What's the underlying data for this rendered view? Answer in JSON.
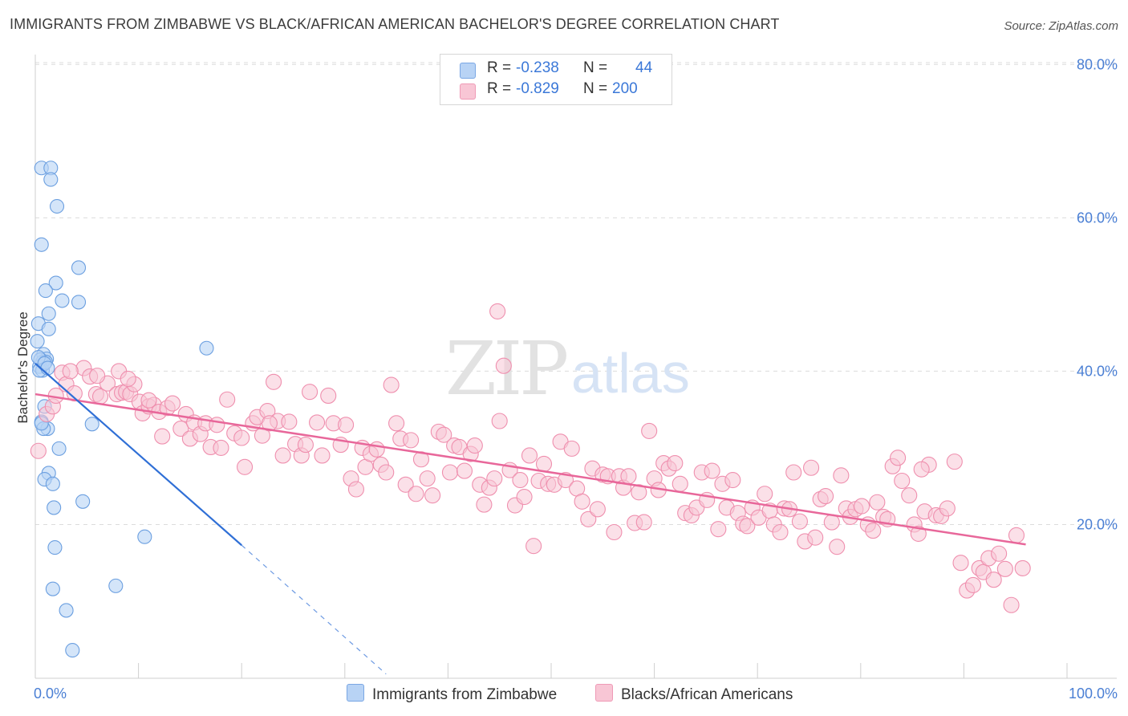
{
  "title": "IMMIGRANTS FROM ZIMBABWE VS BLACK/AFRICAN AMERICAN BACHELOR'S DEGREE CORRELATION CHART",
  "source": "Source: ZipAtlas.com",
  "legend": {
    "r_label": "R =",
    "n_label": "N =",
    "rows": [
      {
        "r": "-0.238",
        "n": "44",
        "color": "#a9c8f2"
      },
      {
        "r": "-0.829",
        "n": "200",
        "color": "#f5b8cb"
      }
    ]
  },
  "colors": {
    "blue_fill": "#b8d3f5",
    "blue_stroke": "#6b9fe0",
    "blue_line": "#2f6fd6",
    "pink_fill": "#f8c6d5",
    "pink_stroke": "#ef8fae",
    "pink_line": "#e8679a"
  },
  "chart_data": {
    "type": "scatter",
    "title": "IMMIGRANTS FROM ZIMBABWE VS BLACK/AFRICAN AMERICAN BACHELOR'S DEGREE CORRELATION CHART",
    "xlabel": "",
    "ylabel": "Bachelor's Degree",
    "xlim": [
      0,
      100
    ],
    "ylim": [
      0,
      80
    ],
    "x_tick_labels": [
      "0.0%",
      "100.0%"
    ],
    "y_tick_labels": [
      "20.0%",
      "40.0%",
      "60.0%",
      "80.0%"
    ],
    "y_ticks": [
      20,
      40,
      60,
      80
    ],
    "grid": true,
    "legend_position": "top-center",
    "series": [
      {
        "name": "Immigrants from Zimbabwe",
        "r": -0.238,
        "n": 44,
        "points": [
          [
            0.6,
            66.5
          ],
          [
            1.5,
            66.5
          ],
          [
            1.5,
            65.0
          ],
          [
            2.1,
            61.5
          ],
          [
            0.6,
            56.5
          ],
          [
            4.2,
            53.5
          ],
          [
            2.0,
            51.5
          ],
          [
            1.0,
            50.5
          ],
          [
            2.6,
            49.2
          ],
          [
            4.2,
            49.0
          ],
          [
            1.3,
            47.5
          ],
          [
            0.3,
            46.2
          ],
          [
            1.3,
            45.5
          ],
          [
            0.2,
            43.9
          ],
          [
            0.8,
            42.2
          ],
          [
            1.1,
            41.6
          ],
          [
            0.7,
            41.2
          ],
          [
            0.4,
            40.6
          ],
          [
            0.7,
            40.1
          ],
          [
            0.4,
            40.1
          ],
          [
            16.6,
            43.0
          ],
          [
            0.9,
            35.4
          ],
          [
            0.6,
            33.4
          ],
          [
            1.2,
            32.5
          ],
          [
            0.8,
            32.5
          ],
          [
            5.5,
            33.1
          ],
          [
            2.3,
            29.9
          ],
          [
            1.3,
            26.7
          ],
          [
            0.9,
            25.9
          ],
          [
            1.7,
            25.3
          ],
          [
            1.8,
            22.2
          ],
          [
            4.6,
            23.0
          ],
          [
            10.6,
            18.4
          ],
          [
            1.9,
            17.0
          ],
          [
            1.7,
            11.6
          ],
          [
            7.8,
            12.0
          ],
          [
            3.0,
            8.8
          ],
          [
            3.6,
            3.6
          ],
          [
            0.5,
            41.5
          ],
          [
            1.0,
            41.2
          ],
          [
            0.3,
            41.8
          ],
          [
            0.9,
            41.0
          ],
          [
            1.2,
            40.4
          ],
          [
            0.6,
            33.2
          ]
        ],
        "trend": {
          "x": [
            0,
            20
          ],
          "y": [
            41.0,
            17.3
          ]
        },
        "trend_extension": {
          "x": [
            20,
            34
          ],
          "y": [
            17.3,
            0.5
          ]
        }
      },
      {
        "name": "Blacks/African Americans",
        "r": -0.829,
        "n": 200,
        "points": [
          [
            0.3,
            29.6
          ],
          [
            1.1,
            34.4
          ],
          [
            1.7,
            35.4
          ],
          [
            2.6,
            39.8
          ],
          [
            3.0,
            38.3
          ],
          [
            3.8,
            37.1
          ],
          [
            4.7,
            40.4
          ],
          [
            5.3,
            39.3
          ],
          [
            5.9,
            37.0
          ],
          [
            6.3,
            36.7
          ],
          [
            7.0,
            38.4
          ],
          [
            7.9,
            37.0
          ],
          [
            8.1,
            40.0
          ],
          [
            8.4,
            37.2
          ],
          [
            8.8,
            37.3
          ],
          [
            9.2,
            37.0
          ],
          [
            9.6,
            38.3
          ],
          [
            10.1,
            36.0
          ],
          [
            10.4,
            34.5
          ],
          [
            11.0,
            35.4
          ],
          [
            11.5,
            35.6
          ],
          [
            12.0,
            34.7
          ],
          [
            12.3,
            31.5
          ],
          [
            12.8,
            35.2
          ],
          [
            13.3,
            35.8
          ],
          [
            14.1,
            32.5
          ],
          [
            14.6,
            34.4
          ],
          [
            15.0,
            31.2
          ],
          [
            15.4,
            33.3
          ],
          [
            16.0,
            31.8
          ],
          [
            16.5,
            33.2
          ],
          [
            17.0,
            30.1
          ],
          [
            17.6,
            33.0
          ],
          [
            18.0,
            30.0
          ],
          [
            18.6,
            36.3
          ],
          [
            19.3,
            31.9
          ],
          [
            20.0,
            31.3
          ],
          [
            20.3,
            27.5
          ],
          [
            21.1,
            33.2
          ],
          [
            21.5,
            34.0
          ],
          [
            22.0,
            31.6
          ],
          [
            22.5,
            34.8
          ],
          [
            23.1,
            38.6
          ],
          [
            23.5,
            33.5
          ],
          [
            24.0,
            29.0
          ],
          [
            24.6,
            33.4
          ],
          [
            25.2,
            30.5
          ],
          [
            25.8,
            29.0
          ],
          [
            26.2,
            30.4
          ],
          [
            26.6,
            37.3
          ],
          [
            27.3,
            33.3
          ],
          [
            27.8,
            29.0
          ],
          [
            28.4,
            36.8
          ],
          [
            28.9,
            33.2
          ],
          [
            29.6,
            30.4
          ],
          [
            30.1,
            33.0
          ],
          [
            30.6,
            26.0
          ],
          [
            31.1,
            24.6
          ],
          [
            31.7,
            30.0
          ],
          [
            32.0,
            27.5
          ],
          [
            32.5,
            29.2
          ],
          [
            33.1,
            29.8
          ],
          [
            33.5,
            27.8
          ],
          [
            34.0,
            26.8
          ],
          [
            34.5,
            38.2
          ],
          [
            35.0,
            33.2
          ],
          [
            35.4,
            31.2
          ],
          [
            35.9,
            25.2
          ],
          [
            36.4,
            31.0
          ],
          [
            36.9,
            24.0
          ],
          [
            37.4,
            28.5
          ],
          [
            38.0,
            26.0
          ],
          [
            38.5,
            23.8
          ],
          [
            39.1,
            32.1
          ],
          [
            39.6,
            31.7
          ],
          [
            40.2,
            26.8
          ],
          [
            40.6,
            30.3
          ],
          [
            41.1,
            30.1
          ],
          [
            41.6,
            27.0
          ],
          [
            42.2,
            29.2
          ],
          [
            42.6,
            30.3
          ],
          [
            43.1,
            25.2
          ],
          [
            43.5,
            22.6
          ],
          [
            44.0,
            24.8
          ],
          [
            44.5,
            26.0
          ],
          [
            45.0,
            33.5
          ],
          [
            45.4,
            40.7
          ],
          [
            46.0,
            27.1
          ],
          [
            46.5,
            22.5
          ],
          [
            47.0,
            25.8
          ],
          [
            47.4,
            23.6
          ],
          [
            47.9,
            29.0
          ],
          [
            48.3,
            17.2
          ],
          [
            48.8,
            25.7
          ],
          [
            49.3,
            27.9
          ],
          [
            49.7,
            25.3
          ],
          [
            50.3,
            25.2
          ],
          [
            50.9,
            30.8
          ],
          [
            51.4,
            25.8
          ],
          [
            52.0,
            29.9
          ],
          [
            52.5,
            24.7
          ],
          [
            53.0,
            23.0
          ],
          [
            53.6,
            20.7
          ],
          [
            54.0,
            27.3
          ],
          [
            54.5,
            22.0
          ],
          [
            55.0,
            26.5
          ],
          [
            55.5,
            26.3
          ],
          [
            56.1,
            19.0
          ],
          [
            56.6,
            26.3
          ],
          [
            57.0,
            24.8
          ],
          [
            57.5,
            26.3
          ],
          [
            58.1,
            20.2
          ],
          [
            58.5,
            24.2
          ],
          [
            59.0,
            20.3
          ],
          [
            59.5,
            32.2
          ],
          [
            60.0,
            26.0
          ],
          [
            60.4,
            24.5
          ],
          [
            60.9,
            28.0
          ],
          [
            61.4,
            27.3
          ],
          [
            62.0,
            28.0
          ],
          [
            62.5,
            25.3
          ],
          [
            63.0,
            21.5
          ],
          [
            63.6,
            21.2
          ],
          [
            64.1,
            22.2
          ],
          [
            64.6,
            26.8
          ],
          [
            65.1,
            23.2
          ],
          [
            65.6,
            27.0
          ],
          [
            66.2,
            19.4
          ],
          [
            66.6,
            25.3
          ],
          [
            67.0,
            22.2
          ],
          [
            67.6,
            25.8
          ],
          [
            68.1,
            21.5
          ],
          [
            68.6,
            20.1
          ],
          [
            69.0,
            19.8
          ],
          [
            69.5,
            22.2
          ],
          [
            70.1,
            20.9
          ],
          [
            70.7,
            24.0
          ],
          [
            71.2,
            21.8
          ],
          [
            71.6,
            20.0
          ],
          [
            72.2,
            19.0
          ],
          [
            72.6,
            22.1
          ],
          [
            73.1,
            22.0
          ],
          [
            73.5,
            26.8
          ],
          [
            74.1,
            20.4
          ],
          [
            74.6,
            17.8
          ],
          [
            75.2,
            27.4
          ],
          [
            75.6,
            18.3
          ],
          [
            76.1,
            23.3
          ],
          [
            76.6,
            23.7
          ],
          [
            77.2,
            20.3
          ],
          [
            77.7,
            17.1
          ],
          [
            78.1,
            26.4
          ],
          [
            78.6,
            22.1
          ],
          [
            79.0,
            21.0
          ],
          [
            79.5,
            22.0
          ],
          [
            80.1,
            22.4
          ],
          [
            80.7,
            20.0
          ],
          [
            81.2,
            19.2
          ],
          [
            81.6,
            22.9
          ],
          [
            82.2,
            21.0
          ],
          [
            82.6,
            20.7
          ],
          [
            83.1,
            27.6
          ],
          [
            83.6,
            28.7
          ],
          [
            84.0,
            25.7
          ],
          [
            84.7,
            23.8
          ],
          [
            85.2,
            20.0
          ],
          [
            85.6,
            18.8
          ],
          [
            86.2,
            21.7
          ],
          [
            86.6,
            27.8
          ],
          [
            87.3,
            21.2
          ],
          [
            87.8,
            21.1
          ],
          [
            88.4,
            22.1
          ],
          [
            89.1,
            28.2
          ],
          [
            89.7,
            15.0
          ],
          [
            90.3,
            11.4
          ],
          [
            90.9,
            12.1
          ],
          [
            91.5,
            14.3
          ],
          [
            91.9,
            13.8
          ],
          [
            92.4,
            15.6
          ],
          [
            92.9,
            12.8
          ],
          [
            93.4,
            16.2
          ],
          [
            94.0,
            14.2
          ],
          [
            94.6,
            9.5
          ],
          [
            95.1,
            18.6
          ],
          [
            95.7,
            14.3
          ],
          [
            85.9,
            27.2
          ],
          [
            6.0,
            39.4
          ],
          [
            3.4,
            40.0
          ],
          [
            9.0,
            39.0
          ],
          [
            44.8,
            47.8
          ],
          [
            11.0,
            36.2
          ],
          [
            2.0,
            36.8
          ],
          [
            22.7,
            33.2
          ]
        ],
        "trend": {
          "x": [
            0,
            96
          ],
          "y": [
            37.0,
            17.4
          ]
        }
      }
    ]
  },
  "watermark": "ZIPatlas",
  "bottom_legend": [
    {
      "label": "Immigrants from Zimbabwe",
      "color": "#b8d3f5"
    },
    {
      "label": "Blacks/African Americans",
      "color": "#f8c6d5"
    }
  ]
}
